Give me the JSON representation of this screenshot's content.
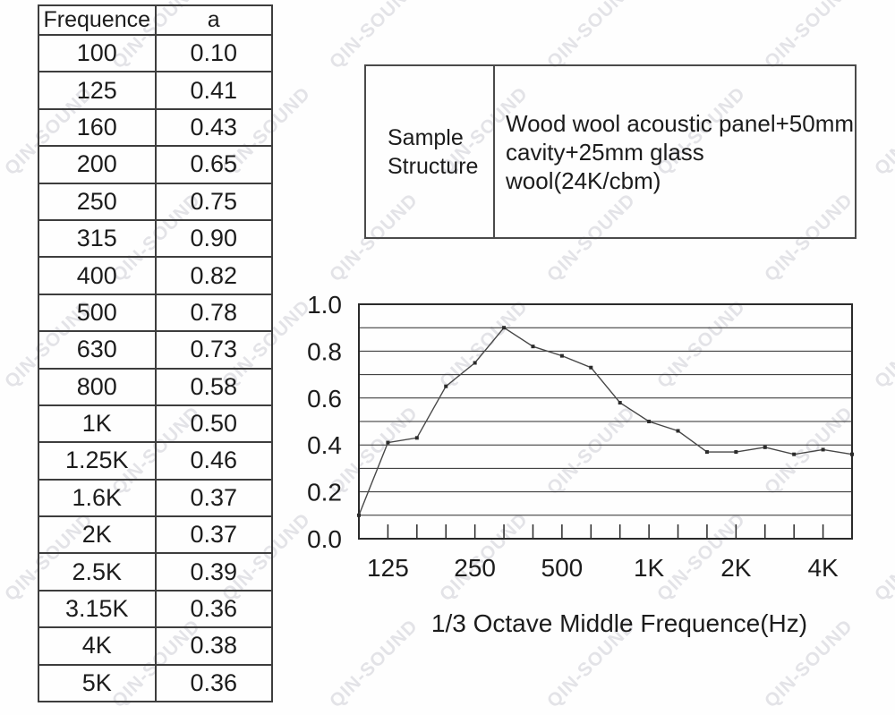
{
  "watermark": {
    "text": "QIN-SOUND",
    "color_hex": "#b9b9c4",
    "opacity": 0.38
  },
  "table": {
    "headers": [
      "Frequence",
      "a"
    ],
    "rows": [
      [
        "100",
        "0.10"
      ],
      [
        "125",
        "0.41"
      ],
      [
        "160",
        "0.43"
      ],
      [
        "200",
        "0.65"
      ],
      [
        "250",
        "0.75"
      ],
      [
        "315",
        "0.90"
      ],
      [
        "400",
        "0.82"
      ],
      [
        "500",
        "0.78"
      ],
      [
        "630",
        "0.73"
      ],
      [
        "800",
        "0.58"
      ],
      [
        "1K",
        "0.50"
      ],
      [
        "1.25K",
        "0.46"
      ],
      [
        "1.6K",
        "0.37"
      ],
      [
        "2K",
        "0.37"
      ],
      [
        "2.5K",
        "0.39"
      ],
      [
        "3.15K",
        "0.36"
      ],
      [
        "4K",
        "0.38"
      ],
      [
        "5K",
        "0.36"
      ]
    ]
  },
  "sample_structure": {
    "label_lines": [
      "Sample",
      "Structure"
    ],
    "value_lines": [
      "Wood wool acoustic panel+50mm",
      "cavity+25mm glass wool(24K/cbm)"
    ]
  },
  "chart_data": {
    "type": "line",
    "title": "",
    "xlabel": "1/3 Octave Middle Frequence(Hz)",
    "ylabel": "",
    "categories": [
      "100",
      "125",
      "160",
      "200",
      "250",
      "315",
      "400",
      "500",
      "630",
      "800",
      "1K",
      "1.25K",
      "1.6K",
      "2K",
      "2.5K",
      "3.15K",
      "4K",
      "5K"
    ],
    "values": [
      0.1,
      0.41,
      0.43,
      0.65,
      0.75,
      0.9,
      0.82,
      0.78,
      0.73,
      0.58,
      0.5,
      0.46,
      0.37,
      0.37,
      0.39,
      0.36,
      0.38,
      0.36
    ],
    "ylim": [
      0.0,
      1.0
    ],
    "grid_step": 0.1,
    "grid": true,
    "legend_position": "none",
    "y_tick_labels": [
      "0.0",
      "0.2",
      "0.4",
      "0.6",
      "0.8",
      "1.0"
    ],
    "y_tick_values": [
      0.0,
      0.2,
      0.4,
      0.6,
      0.8,
      1.0
    ],
    "x_tick_labels": [
      {
        "label": "125",
        "index": 1
      },
      {
        "label": "250",
        "index": 4
      },
      {
        "label": "500",
        "index": 7
      },
      {
        "label": "1K",
        "index": 10
      },
      {
        "label": "2K",
        "index": 13
      },
      {
        "label": "4K",
        "index": 16
      }
    ],
    "line_color_hex": "#474747",
    "grid_color_hex": "#2a2a2a",
    "marker": "square"
  }
}
